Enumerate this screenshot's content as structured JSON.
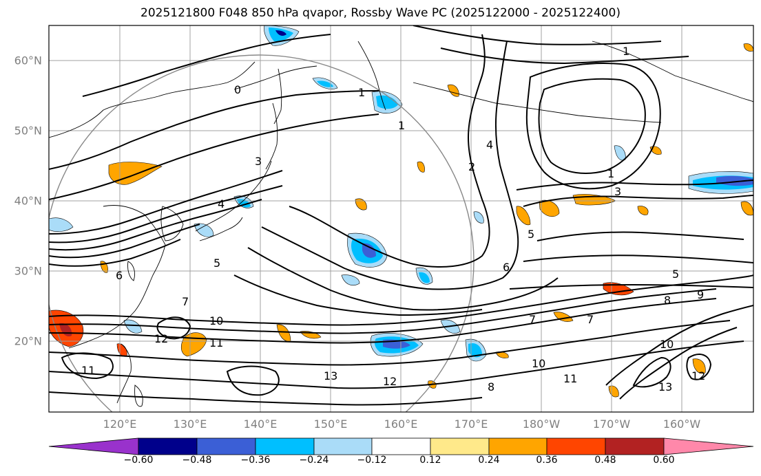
{
  "title": "2025121800 F048 850 hPa qvapor, Rossby Wave PC (2025122000 - 2025122400)",
  "latitude_labels": [
    "60°N",
    "50°N",
    "40°N",
    "30°N",
    "20°N"
  ],
  "longitude_labels": [
    "120°E",
    "130°E",
    "140°E",
    "150°E",
    "160°E",
    "170°E",
    "180°W",
    "170°W",
    "160°W"
  ],
  "contour_labels": [
    "0",
    "1",
    "1",
    "1",
    "1",
    "2",
    "3",
    "3",
    "4",
    "4",
    "5",
    "5",
    "5",
    "6",
    "6",
    "7",
    "7",
    "7",
    "8",
    "8",
    "9",
    "10",
    "10",
    "10",
    "11",
    "11",
    "11",
    "12",
    "12",
    "12",
    "13",
    "13"
  ],
  "colorbar": {
    "tick_labels": [
      "−0.60",
      "−0.48",
      "−0.36",
      "−0.24",
      "−0.12",
      "0.12",
      "0.24",
      "0.36",
      "0.48",
      "0.60"
    ],
    "colors": [
      "#9932cc",
      "#00008b",
      "#3b5fd6",
      "#00bfff",
      "#aadcf8",
      "#ffffff",
      "#ffe98a",
      "#ffa500",
      "#ff4500",
      "#b22222",
      "#ff88aa"
    ]
  },
  "colors": {
    "positive_low": "#ffe98a",
    "positive_mid": "#ffa500",
    "positive_high": "#ff4500",
    "negative_low": "#aadcf8",
    "negative_mid": "#00bfff",
    "negative_high": "#3b5fd6",
    "contour": "#000000",
    "grid": "#a0a0a0",
    "axis_label": "#7f7f7f"
  }
}
